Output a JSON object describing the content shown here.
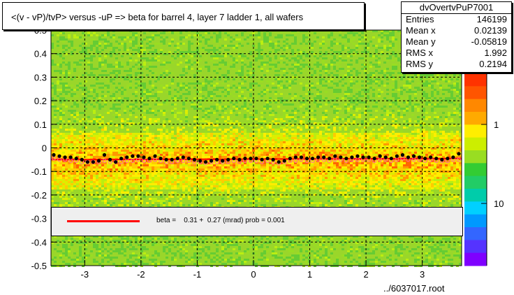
{
  "title": "<(v - vP)/tvP> versus  -uP => beta for barrel 4, layer 7 ladder 1, all wafers",
  "stats": {
    "name": "dvOvertvPuP7001",
    "rows": [
      {
        "label": "Entries",
        "value": "146199"
      },
      {
        "label": "Mean x",
        "value": "0.02139"
      },
      {
        "label": "Mean y",
        "value": "-0.05819"
      },
      {
        "label": "RMS x",
        "value": "1.992"
      },
      {
        "label": "RMS y",
        "value": "0.2194"
      }
    ]
  },
  "fit": {
    "text": "beta =    0.31 +  0.27 (mrad) prob = 0.001",
    "line_color": "#ff0000"
  },
  "footer": "../6037017.root",
  "palette": {
    "low": "#7f00ff",
    "mid_blue": "#00d0ff",
    "green": "#33cc33",
    "yellow": "#ffee00",
    "orange": "#ff8800",
    "high": "#ff3300"
  },
  "chart_data": {
    "type": "heatmap",
    "x_ticks": [
      "-3",
      "-2",
      "-1",
      "0",
      "1",
      "2",
      "3"
    ],
    "y_ticks": [
      "-0.5",
      "-0.4",
      "-0.3",
      "-0.2",
      "-0.1",
      "0",
      "0.1",
      "0.2",
      "0.3",
      "0.4",
      "0.5"
    ],
    "xlim": [
      -3.6,
      3.7
    ],
    "ylim": [
      -0.5,
      0.5
    ],
    "grid": true,
    "color_scale_labels": [
      "1",
      "10"
    ],
    "color_scale": "log",
    "profile_series": {
      "name": "profile (black points)",
      "x": [
        -3.55,
        -3.45,
        -3.35,
        -3.25,
        -3.15,
        -3.05,
        -2.95,
        -2.85,
        -2.75,
        -2.65,
        -2.55,
        -2.45,
        -2.35,
        -2.25,
        -2.15,
        -2.05,
        -1.95,
        -1.85,
        -1.75,
        -1.65,
        -1.55,
        -1.45,
        -1.35,
        -1.25,
        -1.15,
        -1.05,
        -0.95,
        -0.85,
        -0.75,
        -0.65,
        -0.55,
        -0.45,
        -0.35,
        -0.25,
        -0.15,
        -0.05,
        0.05,
        0.15,
        0.25,
        0.35,
        0.45,
        0.55,
        0.65,
        0.75,
        0.85,
        0.95,
        1.05,
        1.15,
        1.25,
        1.35,
        1.45,
        1.55,
        1.65,
        1.75,
        1.85,
        1.95,
        2.05,
        2.15,
        2.25,
        2.35,
        2.45,
        2.55,
        2.65,
        2.75,
        2.85,
        2.95,
        3.05,
        3.15,
        3.25,
        3.35,
        3.45,
        3.55,
        3.65
      ],
      "y": [
        -0.03,
        -0.035,
        -0.04,
        -0.04,
        -0.045,
        -0.05,
        -0.06,
        -0.06,
        -0.055,
        -0.03,
        -0.05,
        -0.06,
        -0.045,
        -0.04,
        -0.035,
        -0.035,
        -0.04,
        -0.045,
        -0.035,
        -0.045,
        -0.05,
        -0.05,
        -0.045,
        -0.04,
        -0.045,
        -0.05,
        -0.055,
        -0.06,
        -0.055,
        -0.05,
        -0.055,
        -0.05,
        -0.045,
        -0.05,
        -0.045,
        -0.045,
        -0.045,
        -0.05,
        -0.045,
        -0.05,
        -0.06,
        -0.055,
        -0.045,
        -0.04,
        -0.04,
        -0.045,
        -0.045,
        -0.04,
        -0.04,
        -0.045,
        -0.035,
        -0.04,
        -0.045,
        -0.04,
        -0.035,
        -0.04,
        -0.04,
        -0.045,
        -0.035,
        -0.04,
        -0.045,
        -0.035,
        -0.03,
        -0.04,
        -0.035,
        -0.04,
        -0.045,
        -0.04,
        -0.045,
        -0.05,
        -0.045,
        -0.04,
        -0.025
      ]
    },
    "secondary_series": {
      "name": "open circles (pink)",
      "y_offset_note": "",
      "y": [
        -0.045,
        -0.05,
        -0.05,
        -0.055,
        -0.055,
        -0.06,
        -0.06,
        -0.06,
        -0.06,
        -0.055,
        -0.06,
        -0.06,
        -0.06,
        -0.055,
        -0.055,
        -0.05,
        -0.055,
        -0.055,
        -0.05,
        -0.055,
        -0.06,
        -0.06,
        -0.055,
        -0.055,
        -0.055,
        -0.06,
        -0.06,
        -0.065,
        -0.06,
        -0.06,
        -0.06,
        -0.06,
        -0.055,
        -0.06,
        -0.055,
        -0.055,
        -0.055,
        -0.06,
        -0.055,
        -0.06,
        -0.065,
        -0.06,
        -0.055,
        -0.055,
        -0.05,
        -0.055,
        -0.055,
        -0.05,
        -0.05,
        -0.055,
        -0.05,
        -0.05,
        -0.055,
        -0.05,
        -0.05,
        -0.05,
        -0.05,
        -0.055,
        -0.05,
        -0.05,
        -0.055,
        -0.05,
        -0.045,
        -0.05,
        -0.05,
        -0.05,
        -0.055,
        -0.05,
        -0.055,
        -0.055,
        -0.055,
        -0.05,
        -0.05
      ]
    },
    "fit_line": {
      "y_at_xmin": -0.05,
      "y_at_xmax": -0.045
    }
  }
}
